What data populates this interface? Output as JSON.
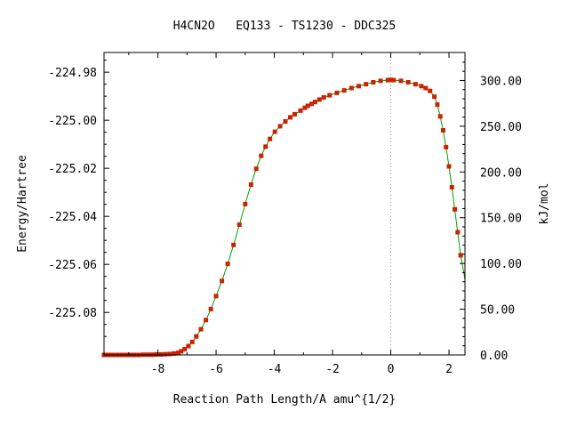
{
  "chart_data": {
    "type": "line",
    "title": "H4CN2O   EQ133 - TS1230 - DDC325",
    "xlabel": "Reaction Path Length/A amu^{1/2}",
    "ylabel": "Energy/Hartree",
    "y2label": "kJ/mol",
    "xlim": [
      -9.85,
      2.55
    ],
    "ylim": [
      -225.0977,
      -224.9718
    ],
    "y2lim": [
      0,
      330.6
    ],
    "x_ticks": [
      "-8",
      "-6",
      "-4",
      "-2",
      "0",
      "2"
    ],
    "y_ticks": [
      "-224.98",
      "-225.00",
      "-225.02",
      "-225.04",
      "-225.06",
      "-225.08"
    ],
    "y2_ticks": [
      "300.00",
      "250.00",
      "200.00",
      "150.00",
      "100.00",
      "50.00",
      "0.00"
    ],
    "ts_marker_x": 0,
    "line_color": "#00a000",
    "marker_color": "#cc2200",
    "x": [
      -9.85,
      -9.7,
      -9.55,
      -9.4,
      -9.25,
      -9.1,
      -8.95,
      -8.8,
      -8.65,
      -8.5,
      -8.35,
      -8.2,
      -8.05,
      -7.9,
      -7.75,
      -7.6,
      -7.45,
      -7.3,
      -7.2,
      -7.08,
      -6.95,
      -6.82,
      -6.68,
      -6.52,
      -6.35,
      -6.18,
      -6.0,
      -5.8,
      -5.6,
      -5.4,
      -5.2,
      -5.0,
      -4.8,
      -4.62,
      -4.45,
      -4.3,
      -4.15,
      -3.98,
      -3.8,
      -3.62,
      -3.45,
      -3.3,
      -3.1,
      -2.95,
      -2.85,
      -2.72,
      -2.6,
      -2.45,
      -2.3,
      -2.1,
      -1.85,
      -1.6,
      -1.35,
      -1.1,
      -0.85,
      -0.6,
      -0.35,
      -0.1,
      0.0,
      0.1,
      0.35,
      0.6,
      0.85,
      1.05,
      1.2,
      1.35,
      1.5,
      1.6,
      1.7,
      1.8,
      1.9,
      2.0,
      2.1,
      2.2,
      2.3,
      2.4,
      2.55
    ],
    "y": [
      -225.0977,
      -225.0977,
      -225.0977,
      -225.0977,
      -225.0977,
      -225.0977,
      -225.0977,
      -225.0977,
      -225.0977,
      -225.0976,
      -225.0976,
      -225.0976,
      -225.0975,
      -225.0975,
      -225.0974,
      -225.0973,
      -225.0971,
      -225.0968,
      -225.0962,
      -225.0953,
      -225.094,
      -225.0923,
      -225.09,
      -225.087,
      -225.0832,
      -225.0786,
      -225.0732,
      -225.0669,
      -225.0598,
      -225.0519,
      -225.0435,
      -225.0349,
      -225.0268,
      -225.0202,
      -225.0148,
      -225.011,
      -225.0078,
      -225.0048,
      -225.0025,
      -225.0005,
      -224.9988,
      -224.9975,
      -224.996,
      -224.9948,
      -224.994,
      -224.9932,
      -224.9924,
      -224.9914,
      -224.9905,
      -224.9896,
      -224.9886,
      -224.9876,
      -224.9866,
      -224.9858,
      -224.985,
      -224.9842,
      -224.9836,
      -224.9833,
      -224.9832,
      -224.9833,
      -224.9836,
      -224.9842,
      -224.985,
      -224.9858,
      -224.9866,
      -224.9878,
      -224.9902,
      -224.9935,
      -224.9984,
      -225.0042,
      -225.0112,
      -225.0192,
      -225.0279,
      -225.0371,
      -225.0466,
      -225.0562,
      -225.0662
    ]
  }
}
